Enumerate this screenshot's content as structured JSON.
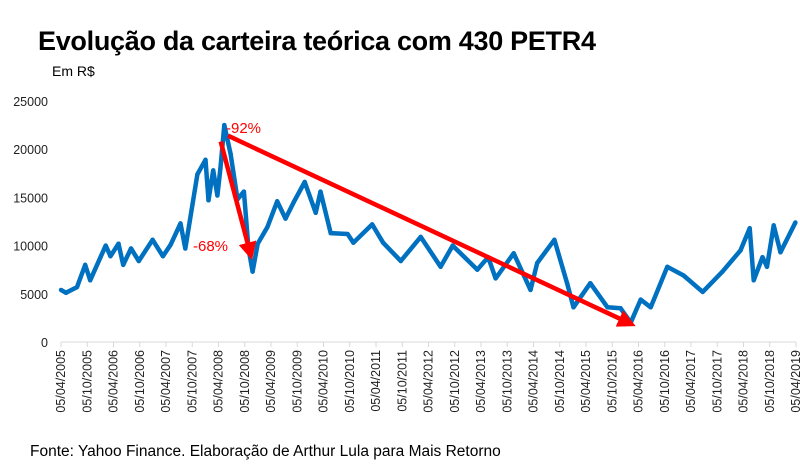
{
  "title": "Evolução da carteira teórica com 430 PETR4",
  "subtitle": "Em R$",
  "source": "Fonte: Yahoo Finance. Elaboração de Arthur Lula para Mais Retorno",
  "colors": {
    "series": "#0070c0",
    "arrow": "#ff0000",
    "axis": "#d9d9d9"
  },
  "chart_data": {
    "type": "line",
    "title": "Evolução da carteira teórica com 430 PETR4",
    "ylabel": "Em R$",
    "ylim": [
      0,
      25000
    ],
    "yticks": [
      0,
      5000,
      10000,
      15000,
      20000,
      25000
    ],
    "xlim": [
      "2005-04-05",
      "2019-04-05"
    ],
    "xticks": [
      "05/04/2005",
      "05/10/2005",
      "05/04/2006",
      "05/10/2006",
      "05/04/2007",
      "05/10/2007",
      "05/04/2008",
      "05/10/2008",
      "05/04/2009",
      "05/10/2009",
      "05/04/2010",
      "05/10/2010",
      "05/04/2011",
      "05/10/2011",
      "05/04/2012",
      "05/10/2012",
      "05/04/2013",
      "05/10/2013",
      "05/04/2014",
      "05/10/2014",
      "05/04/2015",
      "05/10/2015",
      "05/04/2016",
      "05/10/2016",
      "05/04/2017",
      "05/10/2017",
      "05/04/2018",
      "05/10/2018",
      "05/04/2019"
    ],
    "grid": false,
    "series": [
      {
        "points": [
          [
            "2005-04-05",
            5400
          ],
          [
            "2005-05-10",
            5100
          ],
          [
            "2005-07-25",
            5700
          ],
          [
            "2005-09-20",
            8000
          ],
          [
            "2005-10-25",
            6400
          ],
          [
            "2006-01-05",
            8800
          ],
          [
            "2006-02-10",
            10000
          ],
          [
            "2006-03-15",
            8900
          ],
          [
            "2006-05-10",
            10200
          ],
          [
            "2006-06-12",
            8000
          ],
          [
            "2006-08-05",
            9700
          ],
          [
            "2006-09-28",
            8400
          ],
          [
            "2007-01-02",
            10600
          ],
          [
            "2007-03-15",
            8900
          ],
          [
            "2007-05-08",
            10100
          ],
          [
            "2007-07-15",
            12300
          ],
          [
            "2007-08-18",
            9700
          ],
          [
            "2007-11-10",
            17400
          ],
          [
            "2008-01-05",
            18900
          ],
          [
            "2008-01-26",
            14700
          ],
          [
            "2008-02-28",
            17800
          ],
          [
            "2008-03-28",
            15200
          ],
          [
            "2008-04-18",
            18000
          ],
          [
            "2008-05-15",
            22500
          ],
          [
            "2008-06-28",
            19500
          ],
          [
            "2008-08-15",
            14800
          ],
          [
            "2008-09-28",
            15600
          ],
          [
            "2008-10-30",
            9700
          ],
          [
            "2008-11-28",
            7300
          ],
          [
            "2009-01-02",
            10200
          ],
          [
            "2009-03-10",
            11900
          ],
          [
            "2009-05-18",
            14600
          ],
          [
            "2009-07-15",
            12800
          ],
          [
            "2009-09-10",
            14500
          ],
          [
            "2009-11-25",
            16600
          ],
          [
            "2010-02-10",
            13400
          ],
          [
            "2010-03-15",
            15600
          ],
          [
            "2010-05-25",
            11300
          ],
          [
            "2010-09-20",
            11200
          ],
          [
            "2010-10-30",
            10300
          ],
          [
            "2011-03-10",
            12200
          ],
          [
            "2011-05-25",
            10300
          ],
          [
            "2011-09-25",
            8400
          ],
          [
            "2012-02-10",
            10900
          ],
          [
            "2012-06-28",
            7800
          ],
          [
            "2012-09-20",
            10000
          ],
          [
            "2013-03-10",
            7500
          ],
          [
            "2013-05-25",
            8800
          ],
          [
            "2013-07-15",
            6600
          ],
          [
            "2013-11-18",
            9200
          ],
          [
            "2014-03-15",
            5400
          ],
          [
            "2014-05-01",
            8200
          ],
          [
            "2014-08-28",
            10600
          ],
          [
            "2014-11-25",
            6100
          ],
          [
            "2015-01-08",
            3600
          ],
          [
            "2015-05-05",
            6100
          ],
          [
            "2015-09-02",
            3600
          ],
          [
            "2015-12-02",
            3500
          ],
          [
            "2016-02-10",
            2000
          ],
          [
            "2016-04-20",
            4400
          ],
          [
            "2016-06-28",
            3600
          ],
          [
            "2016-10-22",
            7800
          ],
          [
            "2017-02-12",
            6900
          ],
          [
            "2017-06-25",
            5200
          ],
          [
            "2017-11-10",
            7300
          ],
          [
            "2018-03-15",
            9500
          ],
          [
            "2018-05-18",
            11800
          ],
          [
            "2018-06-15",
            6400
          ],
          [
            "2018-08-15",
            8800
          ],
          [
            "2018-09-15",
            7800
          ],
          [
            "2018-11-01",
            12100
          ],
          [
            "2018-12-18",
            9300
          ],
          [
            "2019-04-01",
            12400
          ]
        ]
      }
    ],
    "annotations": [
      {
        "text": "-92%",
        "arrow_from": [
          "2008-06-10",
          21400
        ],
        "arrow_to": [
          "2016-01-25",
          2000
        ]
      },
      {
        "text": "-68%",
        "arrow_from": [
          "2008-04-20",
          20800
        ],
        "arrow_to": [
          "2008-11-10",
          9300
        ]
      }
    ]
  }
}
